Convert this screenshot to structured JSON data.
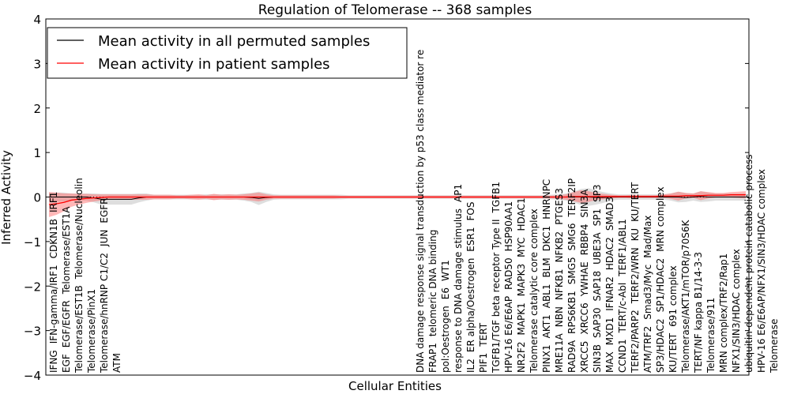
{
  "chart_data": {
    "type": "line",
    "title": "Regulation of Telomerase -- 368 samples",
    "xlabel": "Cellular Entities",
    "ylabel": "Inferred Activity",
    "ylim": [
      -4,
      4
    ],
    "yticks": [
      "−4",
      "−3",
      "−2",
      "−1",
      "0",
      "1",
      "2",
      "3",
      "4"
    ],
    "ytick_values": [
      -4,
      -3,
      -2,
      -1,
      0,
      1,
      2,
      3,
      4
    ],
    "grid": false,
    "legend": {
      "placement": "top-left",
      "entries": [
        {
          "label": "Mean activity in all permuted samples",
          "color": "#000000"
        },
        {
          "label": "Mean activity in patient samples",
          "color": "#ff0000"
        }
      ]
    },
    "categories": [
      "IFNG",
      "IFN-gamma/IRF1",
      "CDKN1B",
      "IRF1",
      "EGF",
      "EGF/EGFR",
      "Telomerase/EST1A",
      "Telomerase/EST1B",
      "Telomerase/Nucleolin",
      "Telomerase/PinX1",
      "Telomerase/hnRNP C1/C2",
      "JUN",
      "EGFR",
      "ATM",
      "DNA damage response signal transduction by p53 class mediator re",
      "FRAP1",
      "telomeric DNA binding",
      "pol:Oestrogen",
      "E6",
      "WT1",
      "response to DNA damage stimulus",
      "AP1",
      "IL2",
      "ER alpha/Oestrogen",
      "ESR1",
      "FOS",
      "PIF1",
      "TERT",
      "TGFB1/TGF beta receptor Type II",
      "TGFB1",
      "HPV-16 E6/E6AP",
      "RAD50",
      "HSP90AA1",
      "NR2F2",
      "MAPK1",
      "MAPK3",
      "MYC",
      "HDAC1",
      "Telomerase catalytic core complex",
      "PINX1",
      "AKT1",
      "ABL1",
      "BLM",
      "DKC1",
      "HNRNPC",
      "MRE11A",
      "NBN",
      "NFKB1",
      "NFKB2",
      "PTGES3",
      "RAD9A",
      "RPS6KB1",
      "SMG5",
      "SMG6",
      "TERF2IP",
      "XRCC5",
      "XRCC6",
      "YWHAE",
      "RBBP4",
      "SIN3A",
      "SIN3B",
      "SAP30",
      "SAP18",
      "UBE3A",
      "SP1",
      "SP3",
      "MAX",
      "MXD1",
      "IFNAR2",
      "HDAC2",
      "SMAD3",
      "CCND1",
      "TERT/c-Abl",
      "TERF1/ABL1",
      "TERF2/PARP2",
      "TERF2/WRN",
      "KU",
      "KU/TERT",
      "ATM/TRF2",
      "Smad3/Myc",
      "Mad/Max",
      "SP3/HDAC2",
      "SP1/HDAC2",
      "MRN complex",
      "KU/TERT",
      "691 complex",
      "Telomerase/AKT1/mTOR/p70S6K",
      "TERT/NF kappa B1/14-3-3",
      "Telomerase/911",
      "MRN complex/TRF2/Rap1",
      "NFX1/SIN3/HDAC complex",
      "ubiquitin-dependent protein catabolic process",
      "HPV-16 E6/E6AP/NFX1/SIN3/HDAC complex",
      "Telomerase"
    ],
    "series": [
      {
        "name": "Mean activity in all permuted samples",
        "color": "#000000",
        "values": [
          0,
          0,
          0,
          0,
          0,
          0,
          -0.02,
          -0.05,
          -0.05,
          -0.05,
          -0.05,
          -0.05,
          -0.02,
          0,
          0,
          0,
          0,
          0,
          0,
          0,
          0,
          0,
          0,
          0,
          0,
          0,
          0,
          -0.01,
          -0.03,
          -0.01,
          0,
          0,
          0,
          0,
          0,
          0,
          0,
          0,
          0,
          0,
          0,
          0,
          0,
          0,
          0,
          0,
          0,
          0,
          0,
          0,
          0,
          0,
          0,
          0,
          0,
          0,
          0,
          0,
          0,
          0,
          0,
          0,
          0,
          0,
          0,
          0,
          0,
          0,
          0,
          0,
          0,
          0,
          0,
          -0.01,
          -0.01,
          0,
          0,
          0,
          0,
          0,
          0,
          0,
          0,
          0,
          0,
          -0.01,
          0,
          0.01,
          0,
          0,
          0,
          0,
          0,
          0
        ],
        "band": [
          0.1,
          0.1,
          0.1,
          0.08,
          0.08,
          0.08,
          0.1,
          0.12,
          0.12,
          0.12,
          0.12,
          0.12,
          0.1,
          0.08,
          0.05,
          0.05,
          0.05,
          0.05,
          0.05,
          0.05,
          0.05,
          0.06,
          0.06,
          0.06,
          0.06,
          0.06,
          0.08,
          0.1,
          0.15,
          0.1,
          0.06,
          0.05,
          0.05,
          0.05,
          0.05,
          0.05,
          0.05,
          0.05,
          0.05,
          0.05,
          0.04,
          0.04,
          0.04,
          0.04,
          0.04,
          0.04,
          0.04,
          0.04,
          0.04,
          0.04,
          0.04,
          0.04,
          0.04,
          0.04,
          0.04,
          0.04,
          0.04,
          0.04,
          0.04,
          0.04,
          0.04,
          0.04,
          0.04,
          0.04,
          0.04,
          0.04,
          0.04,
          0.05,
          0.06,
          0.08,
          0.12,
          0.18,
          0.2,
          0.16,
          0.12,
          0.08,
          0.06,
          0.06,
          0.06,
          0.06,
          0.06,
          0.06,
          0.06,
          0.08,
          0.12,
          0.1,
          0.08,
          0.12,
          0.1,
          0.08,
          0.08,
          0.08,
          0.08,
          0.08
        ]
      },
      {
        "name": "Mean activity in patient samples",
        "color": "#ff0000",
        "values": [
          -0.17,
          -0.15,
          -0.12,
          -0.07,
          -0.05,
          -0.03,
          -0.02,
          -0.01,
          0,
          0,
          0,
          0,
          0,
          0,
          0,
          0,
          0,
          0,
          0,
          0,
          0,
          0,
          0,
          0,
          0,
          0,
          0,
          0,
          0,
          0,
          0,
          0,
          0,
          0,
          0,
          0,
          0,
          0,
          0,
          0,
          0,
          0,
          0,
          0,
          0,
          0,
          0,
          0,
          0,
          0,
          0,
          0,
          0,
          0,
          0,
          0,
          0,
          0,
          0,
          0,
          0,
          0,
          0,
          0,
          0,
          0,
          0,
          0,
          0,
          0,
          0.01,
          0.01,
          0.01,
          0.01,
          0.01,
          0.01,
          0.01,
          0.01,
          0.01,
          0.01,
          0.01,
          0.01,
          0.02,
          0.02,
          0.02,
          0.03,
          0.03,
          0.03,
          0.04,
          0.04,
          0.04,
          0.05,
          0.05,
          0.05
        ],
        "band": [
          0.28,
          0.25,
          0.2,
          0.15,
          0.12,
          0.1,
          0.08,
          0.07,
          0.06,
          0.06,
          0.06,
          0.06,
          0.06,
          0.06,
          0.05,
          0.05,
          0.05,
          0.04,
          0.04,
          0.05,
          0.06,
          0.04,
          0.07,
          0.05,
          0.06,
          0.05,
          0.06,
          0.08,
          0.1,
          0.06,
          0.04,
          0.04,
          0.04,
          0.04,
          0.04,
          0.04,
          0.04,
          0.04,
          0.04,
          0.03,
          0.03,
          0.03,
          0.03,
          0.03,
          0.03,
          0.03,
          0.03,
          0.03,
          0.03,
          0.03,
          0.03,
          0.03,
          0.03,
          0.03,
          0.03,
          0.03,
          0.03,
          0.03,
          0.03,
          0.03,
          0.03,
          0.03,
          0.03,
          0.03,
          0.03,
          0.03,
          0.03,
          0.03,
          0.04,
          0.06,
          0.1,
          0.14,
          0.12,
          0.08,
          0.06,
          0.04,
          0.03,
          0.03,
          0.04,
          0.03,
          0.03,
          0.03,
          0.04,
          0.06,
          0.1,
          0.06,
          0.05,
          0.1,
          0.07,
          0.05,
          0.05,
          0.06,
          0.07,
          0.08
        ]
      }
    ]
  }
}
